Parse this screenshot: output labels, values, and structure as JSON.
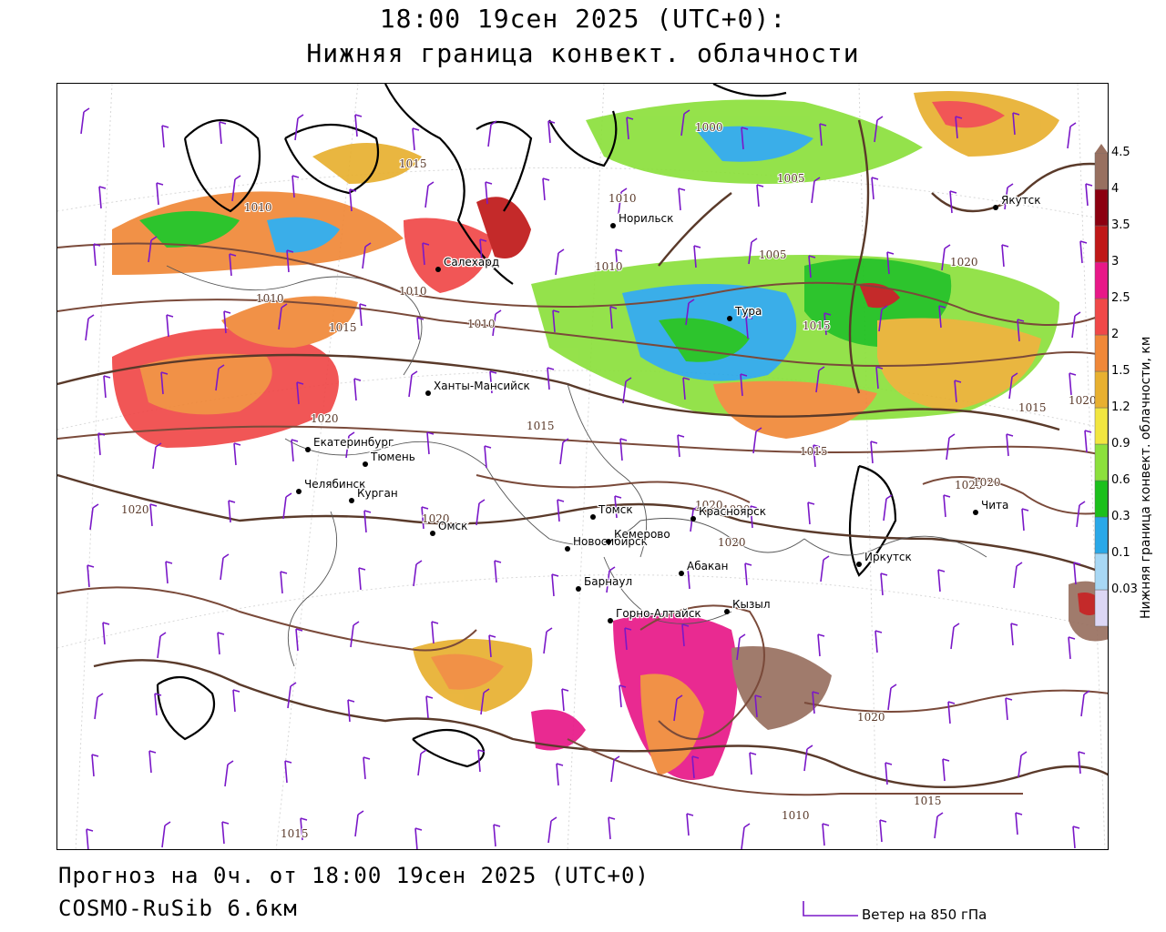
{
  "header": {
    "title_line1": "18:00 19сен 2025 (UTC+0):",
    "title_line2": "Нижняя граница конвект. облачности"
  },
  "footer": {
    "forecast": "Прогноз на 0ч. от 18:00 19сен 2025 (UTC+0)",
    "model": "COSMO-RuSib 6.6км",
    "wind_legend": "Ветер на 850 гПа"
  },
  "legend": {
    "title": "Нижняя граница конвект. облачности, км",
    "levels": [
      {
        "label": "0.03",
        "color": "#dcd7f5"
      },
      {
        "label": "0.1",
        "color": "#a8d8f5"
      },
      {
        "label": "0.3",
        "color": "#2aa8e8"
      },
      {
        "label": "0.6",
        "color": "#1cc01c"
      },
      {
        "label": "0.9",
        "color": "#8ce03c"
      },
      {
        "label": "1.2",
        "color": "#f2e640"
      },
      {
        "label": "1.5",
        "color": "#e8b030"
      },
      {
        "label": "2",
        "color": "#f08838"
      },
      {
        "label": "2.5",
        "color": "#f04848"
      },
      {
        "label": "3",
        "color": "#e81888"
      },
      {
        "label": "3.5",
        "color": "#c01818"
      },
      {
        "label": "4",
        "color": "#8c0010"
      },
      {
        "label": "4.5",
        "color": "#987060"
      }
    ]
  },
  "cities": [
    {
      "name": "Якутск"
    },
    {
      "name": "Норильск"
    },
    {
      "name": "Салехард"
    },
    {
      "name": "Тура"
    },
    {
      "name": "Ханты-Мансийск"
    },
    {
      "name": "Екатеринбург"
    },
    {
      "name": "Тюмень"
    },
    {
      "name": "Челябинск"
    },
    {
      "name": "Курган"
    },
    {
      "name": "Омск"
    },
    {
      "name": "Новосибирск"
    },
    {
      "name": "Томск"
    },
    {
      "name": "Кемерово"
    },
    {
      "name": "Красноярск"
    },
    {
      "name": "Барнаул"
    },
    {
      "name": "Абакан"
    },
    {
      "name": "Горно-Алтайск"
    },
    {
      "name": "Кызыл"
    },
    {
      "name": "Иркутск"
    },
    {
      "name": "Чита"
    }
  ],
  "isobars": [
    "1015",
    "1010",
    "1005",
    "1000",
    "1010",
    "1010",
    "1005",
    "1015",
    "1020",
    "1010",
    "1015",
    "1010",
    "1010",
    "1020",
    "1015",
    "1015",
    "1020",
    "1020",
    "1020",
    "1020",
    "1020",
    "1020",
    "1020",
    "1020",
    "1015",
    "1010",
    "1015",
    "1015",
    "1020"
  ]
}
